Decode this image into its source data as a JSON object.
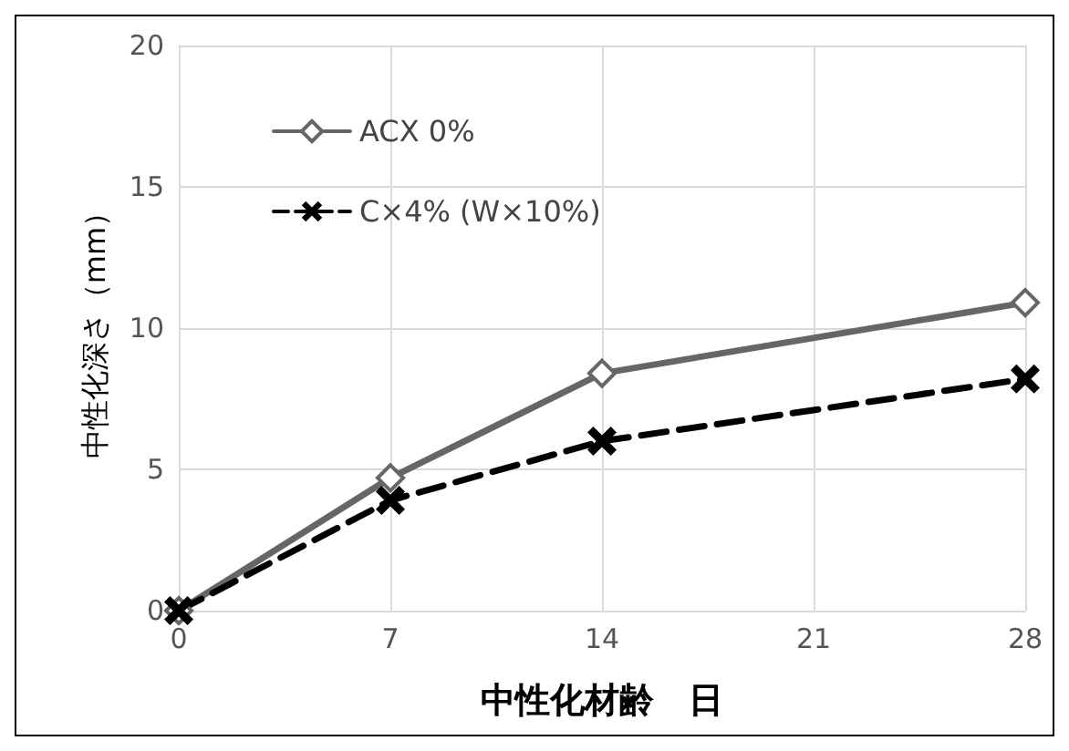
{
  "chart_data": {
    "type": "line",
    "xlabel": "中性化材齢　日",
    "ylabel": "中性化深さ（mm）",
    "x": [
      0,
      7,
      14,
      28
    ],
    "xlim": [
      0,
      28
    ],
    "xticks": [
      0,
      7,
      14,
      21,
      28
    ],
    "ylim": [
      0,
      20
    ],
    "yticks": [
      0,
      5,
      10,
      15,
      20
    ],
    "grid": true,
    "legend": "top left",
    "series": [
      {
        "name": "ACX 0%",
        "color": "#666666",
        "marker": "diamond",
        "line_style": "solid",
        "values": [
          0,
          4.7,
          8.4,
          10.9
        ]
      },
      {
        "name": "C×4% (W×10%)",
        "color": "#000000",
        "marker": "cross",
        "line_style": "dashed",
        "values": [
          0,
          3.9,
          6.0,
          8.2
        ]
      }
    ]
  }
}
